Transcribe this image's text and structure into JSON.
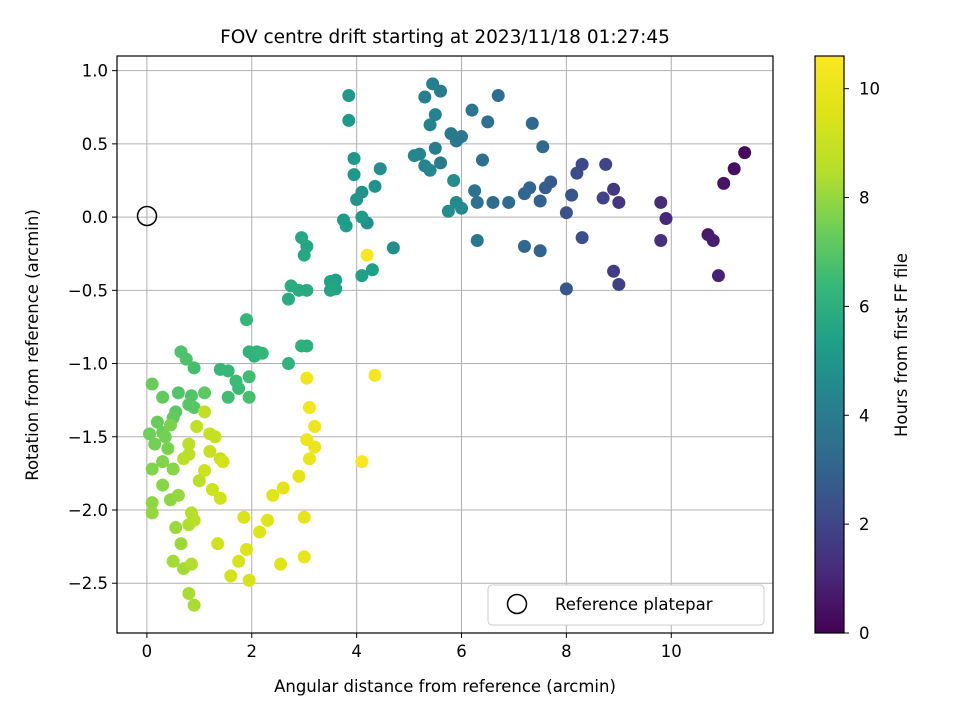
{
  "chart_data": {
    "type": "scatter",
    "title": "FOV centre drift starting at 2023/11/18 01:27:45",
    "xlabel": "Angular distance from reference (arcmin)",
    "ylabel": "Rotation from reference (arcmin)",
    "xlim": [
      -0.57,
      11.94
    ],
    "ylim": [
      -2.84,
      1.1
    ],
    "xticks": [
      0,
      2,
      4,
      6,
      8,
      10
    ],
    "yticks": [
      1.0,
      0.5,
      0.0,
      -0.5,
      -1.0,
      -1.5,
      -2.0,
      -2.5
    ],
    "xtick_labels": [
      "0",
      "2",
      "4",
      "6",
      "8",
      "10"
    ],
    "ytick_labels": [
      "1.0",
      "0.5",
      "0.0",
      "−0.5",
      "−1.0",
      "−1.5",
      "−2.0",
      "−2.5"
    ],
    "grid": true,
    "legend": {
      "location": "lower right",
      "entries": [
        "Reference platepar"
      ]
    },
    "reference_point": {
      "x": 0,
      "y": 0
    },
    "colorbar": {
      "label": "Hours from first FF file",
      "range": [
        0,
        10.6
      ],
      "ticks": [
        0,
        2,
        4,
        6,
        8,
        10
      ],
      "tick_labels": [
        "0",
        "2",
        "4",
        "6",
        "8",
        "10"
      ],
      "colormap": "viridis"
    },
    "points": [
      [
        11.4,
        0.44,
        0.2
      ],
      [
        11.2,
        0.33,
        0.4
      ],
      [
        11.0,
        0.23,
        0.5
      ],
      [
        10.7,
        -0.12,
        0.7
      ],
      [
        10.8,
        -0.16,
        0.8
      ],
      [
        10.9,
        -0.4,
        0.9
      ],
      [
        9.9,
        -0.01,
        1.1
      ],
      [
        9.8,
        0.1,
        1.2
      ],
      [
        9.8,
        -0.16,
        1.3
      ],
      [
        9.0,
        0.1,
        1.5
      ],
      [
        8.9,
        0.19,
        1.6
      ],
      [
        8.9,
        -0.37,
        1.7
      ],
      [
        9.0,
        -0.46,
        1.8
      ],
      [
        8.7,
        0.13,
        1.9
      ],
      [
        8.75,
        0.36,
        2.0
      ],
      [
        8.3,
        0.36,
        2.1
      ],
      [
        8.2,
        0.3,
        2.2
      ],
      [
        8.3,
        -0.14,
        2.3
      ],
      [
        8.0,
        0.03,
        2.4
      ],
      [
        8.1,
        0.15,
        2.5
      ],
      [
        8.0,
        -0.49,
        2.6
      ],
      [
        7.7,
        0.24,
        2.7
      ],
      [
        7.6,
        0.2,
        2.8
      ],
      [
        7.5,
        0.11,
        2.9
      ],
      [
        7.5,
        -0.23,
        3.0
      ],
      [
        7.2,
        0.16,
        3.1
      ],
      [
        7.3,
        0.2,
        3.1
      ],
      [
        7.2,
        -0.2,
        3.2
      ],
      [
        7.35,
        0.64,
        3.2
      ],
      [
        7.55,
        0.48,
        3.3
      ],
      [
        6.9,
        0.1,
        3.3
      ],
      [
        6.6,
        0.1,
        3.4
      ],
      [
        6.7,
        0.83,
        3.4
      ],
      [
        6.5,
        0.65,
        3.5
      ],
      [
        6.4,
        0.39,
        3.5
      ],
      [
        6.3,
        0.1,
        3.6
      ],
      [
        6.25,
        0.18,
        3.6
      ],
      [
        6.2,
        0.73,
        3.7
      ],
      [
        6.3,
        -0.16,
        3.7
      ],
      [
        6.0,
        0.55,
        3.8
      ],
      [
        5.9,
        0.52,
        3.8
      ],
      [
        5.8,
        0.57,
        3.9
      ],
      [
        5.6,
        0.37,
        3.9
      ],
      [
        5.5,
        0.47,
        4.0
      ],
      [
        5.6,
        0.86,
        4.0
      ],
      [
        5.45,
        0.91,
        4.1
      ],
      [
        5.3,
        0.82,
        4.1
      ],
      [
        5.4,
        0.63,
        4.2
      ],
      [
        5.5,
        0.7,
        4.2
      ],
      [
        5.2,
        0.43,
        4.3
      ],
      [
        5.3,
        0.35,
        4.3
      ],
      [
        5.1,
        0.42,
        4.4
      ],
      [
        5.4,
        0.32,
        4.4
      ],
      [
        5.9,
        0.1,
        4.5
      ],
      [
        6.0,
        0.06,
        4.5
      ],
      [
        5.75,
        0.04,
        4.6
      ],
      [
        5.85,
        0.25,
        4.6
      ],
      [
        4.7,
        -0.21,
        4.7
      ],
      [
        4.45,
        0.33,
        4.7
      ],
      [
        4.35,
        0.21,
        4.8
      ],
      [
        4.2,
        -0.04,
        4.8
      ],
      [
        4.1,
        0.17,
        4.9
      ],
      [
        4.0,
        0.12,
        4.9
      ],
      [
        3.95,
        0.29,
        5.0
      ],
      [
        3.95,
        0.4,
        5.0
      ],
      [
        3.85,
        0.66,
        5.1
      ],
      [
        3.85,
        0.83,
        5.1
      ],
      [
        4.1,
        0.0,
        5.2
      ],
      [
        3.75,
        -0.02,
        5.2
      ],
      [
        3.8,
        -0.06,
        5.3
      ],
      [
        4.3,
        -0.36,
        5.3
      ],
      [
        4.1,
        -0.4,
        5.4
      ],
      [
        3.6,
        -0.43,
        5.4
      ],
      [
        3.5,
        -0.44,
        5.5
      ],
      [
        3.6,
        -0.49,
        5.5
      ],
      [
        3.5,
        -0.5,
        5.6
      ],
      [
        3.05,
        -0.2,
        5.6
      ],
      [
        2.95,
        -0.14,
        5.7
      ],
      [
        3.0,
        -0.26,
        5.7
      ],
      [
        3.05,
        -0.5,
        5.8
      ],
      [
        2.9,
        -0.5,
        5.8
      ],
      [
        2.75,
        -0.47,
        5.9
      ],
      [
        2.7,
        -0.56,
        5.9
      ],
      [
        2.95,
        -0.88,
        6.0
      ],
      [
        3.05,
        -0.88,
        6.0
      ],
      [
        2.7,
        -1.0,
        6.1
      ],
      [
        2.05,
        -0.95,
        6.1
      ],
      [
        1.95,
        -0.92,
        6.2
      ],
      [
        2.1,
        -0.92,
        6.2
      ],
      [
        2.2,
        -0.93,
        6.3
      ],
      [
        1.9,
        -0.7,
        6.3
      ],
      [
        1.55,
        -1.05,
        6.4
      ],
      [
        1.4,
        -1.04,
        6.4
      ],
      [
        1.7,
        -1.12,
        6.5
      ],
      [
        1.75,
        -1.17,
        6.5
      ],
      [
        1.55,
        -1.23,
        6.6
      ],
      [
        1.95,
        -1.09,
        6.6
      ],
      [
        1.95,
        -1.23,
        6.7
      ],
      [
        0.9,
        -1.03,
        6.7
      ],
      [
        0.65,
        -0.92,
        6.8
      ],
      [
        0.75,
        -0.97,
        6.8
      ],
      [
        0.6,
        -1.2,
        6.9
      ],
      [
        0.85,
        -1.22,
        6.9
      ],
      [
        0.8,
        -1.28,
        7.0
      ],
      [
        0.9,
        -1.3,
        7.0
      ],
      [
        1.1,
        -1.2,
        7.1
      ],
      [
        0.55,
        -1.33,
        7.1
      ],
      [
        0.5,
        -1.37,
        7.2
      ],
      [
        0.3,
        -1.23,
        7.2
      ],
      [
        0.1,
        -1.14,
        7.3
      ],
      [
        0.2,
        -1.4,
        7.3
      ],
      [
        0.3,
        -1.47,
        7.4
      ],
      [
        0.05,
        -1.48,
        7.4
      ],
      [
        0.15,
        -1.55,
        7.5
      ],
      [
        0.35,
        -1.5,
        7.5
      ],
      [
        0.45,
        -1.42,
        7.6
      ],
      [
        0.4,
        -1.58,
        7.6
      ],
      [
        0.1,
        -1.72,
        7.7
      ],
      [
        0.3,
        -1.67,
        7.7
      ],
      [
        0.5,
        -1.72,
        7.8
      ],
      [
        0.3,
        -1.83,
        7.8
      ],
      [
        0.45,
        -1.93,
        7.9
      ],
      [
        0.1,
        -1.95,
        7.9
      ],
      [
        0.1,
        -2.02,
        8.0
      ],
      [
        0.6,
        -1.9,
        8.0
      ],
      [
        0.55,
        -2.12,
        8.1
      ],
      [
        0.65,
        -2.23,
        8.1
      ],
      [
        0.5,
        -2.35,
        8.2
      ],
      [
        0.7,
        -2.4,
        8.2
      ],
      [
        0.8,
        -2.57,
        8.3
      ],
      [
        0.9,
        -2.65,
        8.3
      ],
      [
        0.85,
        -2.37,
        8.4
      ],
      [
        0.8,
        -2.1,
        8.4
      ],
      [
        0.9,
        -2.07,
        8.5
      ],
      [
        0.85,
        -2.02,
        8.5
      ],
      [
        1.0,
        -1.8,
        8.6
      ],
      [
        0.7,
        -1.65,
        8.6
      ],
      [
        0.8,
        -1.55,
        8.7
      ],
      [
        0.8,
        -1.62,
        8.7
      ],
      [
        0.95,
        -1.43,
        8.8
      ],
      [
        1.1,
        -1.33,
        8.8
      ],
      [
        1.2,
        -1.48,
        8.9
      ],
      [
        1.3,
        -1.5,
        8.9
      ],
      [
        1.2,
        -1.6,
        9.0
      ],
      [
        1.4,
        -1.65,
        9.0
      ],
      [
        1.1,
        -1.73,
        9.1
      ],
      [
        1.25,
        -1.86,
        9.1
      ],
      [
        1.4,
        -1.92,
        9.2
      ],
      [
        1.35,
        -2.23,
        9.2
      ],
      [
        1.45,
        -1.67,
        9.3
      ],
      [
        1.6,
        -2.45,
        9.3
      ],
      [
        1.75,
        -2.35,
        9.4
      ],
      [
        1.95,
        -2.48,
        9.4
      ],
      [
        1.9,
        -2.27,
        9.5
      ],
      [
        1.85,
        -2.05,
        9.5
      ],
      [
        2.15,
        -2.15,
        9.6
      ],
      [
        2.3,
        -2.07,
        9.6
      ],
      [
        2.55,
        -2.37,
        9.7
      ],
      [
        2.4,
        -1.9,
        9.7
      ],
      [
        2.6,
        -1.85,
        9.8
      ],
      [
        2.9,
        -1.77,
        9.8
      ],
      [
        3.0,
        -2.05,
        9.9
      ],
      [
        3.0,
        -2.32,
        9.9
      ],
      [
        3.1,
        -1.65,
        10.0
      ],
      [
        3.2,
        -1.57,
        10.0
      ],
      [
        3.05,
        -1.52,
        10.1
      ],
      [
        3.2,
        -1.43,
        10.1
      ],
      [
        3.1,
        -1.3,
        10.2
      ],
      [
        3.05,
        -1.1,
        10.2
      ],
      [
        4.35,
        -1.08,
        10.3
      ],
      [
        4.2,
        -0.26,
        10.4
      ],
      [
        4.1,
        -1.67,
        10.5
      ]
    ]
  }
}
